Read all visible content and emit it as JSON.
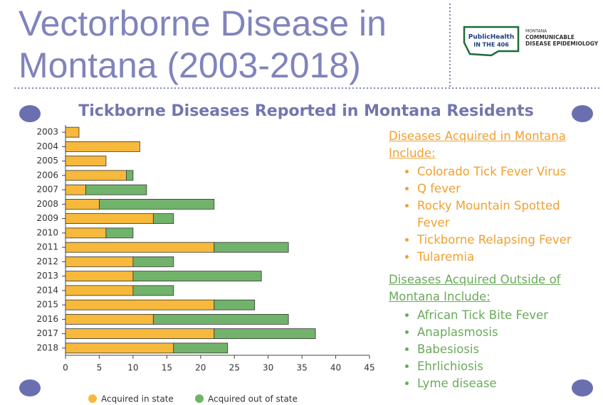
{
  "header": {
    "title_lines": [
      "Vectorborne Disease in",
      "Montana (2003-2018)"
    ],
    "logo": {
      "brand_lines": [
        "PublicHealth",
        "IN THE 406"
      ],
      "org_lines": [
        "MONTANA",
        "COMMUNICABLE",
        "DISEASE EPIDEMIOLOGY"
      ]
    }
  },
  "chart_data": {
    "type": "bar",
    "orientation": "horizontal",
    "stacked": true,
    "title": "Tickborne Diseases Reported in Montana Residents",
    "categories": [
      "2003",
      "2004",
      "2005",
      "2006",
      "2007",
      "2008",
      "2009",
      "2010",
      "2011",
      "2012",
      "2013",
      "2014",
      "2015",
      "2016",
      "2017",
      "2018"
    ],
    "series": [
      {
        "name": "Acquired in state",
        "color": "#f6b93b",
        "values": [
          2,
          11,
          6,
          9,
          3,
          5,
          13,
          6,
          22,
          10,
          10,
          10,
          22,
          13,
          22,
          16
        ]
      },
      {
        "name": "Acquired out of state",
        "color": "#72b36b",
        "values": [
          0,
          0,
          0,
          1,
          9,
          17,
          3,
          4,
          11,
          6,
          19,
          6,
          6,
          20,
          15,
          8
        ]
      }
    ],
    "xlim": [
      0,
      45
    ],
    "xticks": [
      0,
      5,
      10,
      15,
      20,
      25,
      30,
      35,
      40,
      45
    ],
    "grid": false,
    "legend": "bottom"
  },
  "sidebar": {
    "in_state": {
      "heading_lines": [
        "Diseases Acquired in Montana",
        "Include:"
      ],
      "color": "#f0a030",
      "items": [
        "Colorado Tick Fever Virus",
        "Q fever",
        "Rocky Mountain Spotted Fever",
        "Tickborne Relapsing Fever",
        "Tularemia"
      ]
    },
    "out_of_state": {
      "heading_lines": [
        "Diseases Acquired Outside of",
        "Montana Include:"
      ],
      "color": "#6aaa5a",
      "items": [
        "African Tick Bite Fever",
        "Anaplasmosis",
        "Babesiosis",
        "Ehrlichiosis",
        "Lyme disease"
      ]
    }
  }
}
